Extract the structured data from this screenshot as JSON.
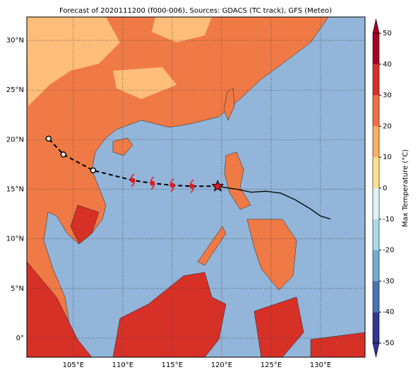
{
  "map": {
    "title": "Forecast of 2020111200 (f000-006), Sources: GDACS (TC track), GFS (Meteo)",
    "xlim": [
      100.3,
      134.5
    ],
    "ylim": [
      -1.93,
      32.36
    ],
    "xticks": [
      {
        "value": 105,
        "label": "105°E"
      },
      {
        "value": 110,
        "label": "110°E"
      },
      {
        "value": 115,
        "label": "115°E"
      },
      {
        "value": 120,
        "label": "120°E"
      },
      {
        "value": 125,
        "label": "125°E"
      },
      {
        "value": 130,
        "label": "130°E"
      }
    ],
    "yticks": [
      {
        "value": 0,
        "label": "0°"
      },
      {
        "value": 5,
        "label": "5°N"
      },
      {
        "value": 10,
        "label": "10°N"
      },
      {
        "value": 15,
        "label": "15°N"
      },
      {
        "value": 20,
        "label": "20°N"
      },
      {
        "value": 25,
        "label": "25°N"
      },
      {
        "value": 30,
        "label": "30°N"
      }
    ],
    "forecast_track": {
      "lon": [
        119.6,
        117.0,
        115.0,
        113.0,
        111.0,
        107.0,
        104.0,
        102.5
      ],
      "lat": [
        15.3,
        15.3,
        15.4,
        15.6,
        15.9,
        16.9,
        18.5,
        20.1
      ]
    },
    "past_track": {
      "lon": [
        119.6,
        121.5,
        123.0,
        124.5,
        126.0,
        127.5,
        129.0,
        130.0,
        131.0
      ],
      "lat": [
        15.3,
        15.0,
        14.7,
        14.8,
        14.6,
        13.9,
        13.0,
        12.3,
        12.0
      ]
    },
    "colorbar": {
      "label": "Max Temperature (°C)",
      "ticks": [
        -50,
        -40,
        -30,
        -20,
        -10,
        0,
        10,
        20,
        30,
        40,
        50
      ],
      "colors": [
        "#313695",
        "#4575b4",
        "#74add1",
        "#abd9e9",
        "#e0f3f8",
        "#fee090",
        "#fdae61",
        "#f46d43",
        "#d73027",
        "#a50026"
      ]
    }
  }
}
